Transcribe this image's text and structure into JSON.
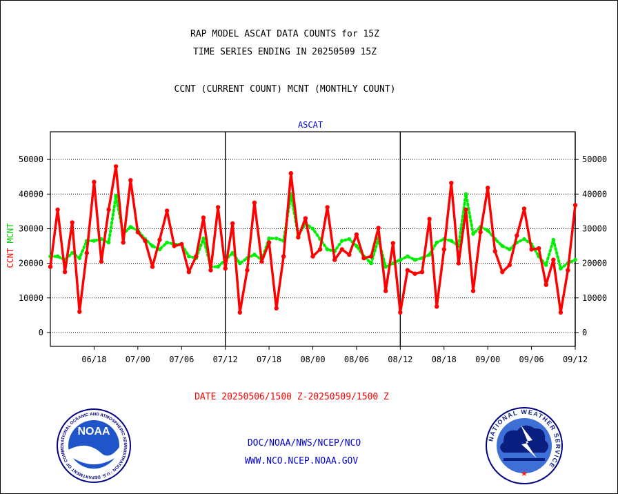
{
  "header": {
    "title_line1": "RAP MODEL ASCAT DATA COUNTS for 15Z",
    "title_line2": "TIME SERIES ENDING IN 20250509 15Z",
    "subtitle": "CCNT (CURRENT COUNT) MCNT (MONTHLY COUNT)"
  },
  "footer": {
    "date_range": "DATE 20250506/1500 Z-20250509/1500 Z",
    "agency": "DOC/NOAA/NWS/NCEP/NCO",
    "website": "WWW.NCO.NCEP.NOAA.GOV"
  },
  "logos": {
    "noaa_text": "NOAA",
    "noaa_ring": "NATIONAL OCEANIC AND ATMOSPHERIC ADMINISTRATION · U.S. DEPARTMENT OF COMMERCE",
    "nws_ring": "NATIONAL WEATHER SERVICE"
  },
  "colors": {
    "ccnt": "#ff0000",
    "mcnt": "#00ee00",
    "axis": "#000000",
    "title": "#000000",
    "panel_title": "#0000cc",
    "footer_date": "#ff0000",
    "footer_links": "#0000cc"
  },
  "chart_data": {
    "type": "line",
    "title": "ASCAT",
    "ylabel_ccnt": "CCNT",
    "ylabel_mcnt": "MCNT",
    "ylim": [
      -4000,
      58000
    ],
    "yticks": [
      0,
      10000,
      20000,
      30000,
      40000,
      50000
    ],
    "ytick_labels": [
      "0",
      "10000",
      "20000",
      "30000",
      "40000",
      "50000"
    ],
    "grid": "horizontal dotted",
    "xtick_labels": [
      "06/18",
      "07/00",
      "07/06",
      "07/12",
      "07/18",
      "08/00",
      "08/06",
      "08/12",
      "08/18",
      "09/00",
      "09/06",
      "09/12"
    ],
    "x_range_hours": [
      -3,
      69
    ],
    "xtick_hours": [
      3,
      9,
      15,
      21,
      27,
      33,
      39,
      45,
      51,
      57,
      63,
      69
    ],
    "day_boundaries_hours": [
      21,
      45,
      69
    ],
    "sample_step_hours": 1,
    "series": [
      {
        "name": "CCNT",
        "color": "#ff0000",
        "values": [
          19000,
          35500,
          17500,
          31800,
          6000,
          23000,
          43500,
          20500,
          35500,
          48000,
          26000,
          44000,
          29000,
          26500,
          19000,
          26800,
          35200,
          25000,
          25500,
          17500,
          22000,
          33200,
          18000,
          36200,
          18500,
          31500,
          5800,
          18000,
          37500,
          20500,
          26000,
          7000,
          22000,
          46000,
          27500,
          33000,
          22000,
          24000,
          36200,
          21000,
          24000,
          22500,
          28300,
          21500,
          22000,
          30200,
          12000,
          25800,
          5800,
          18000,
          17000,
          17500,
          32800,
          7500,
          24000,
          43200,
          20000,
          35500,
          12000,
          29000,
          41800,
          23500,
          17500,
          19500,
          28000,
          35800,
          24000,
          24300,
          13800,
          21000,
          5800,
          18000,
          36800
        ]
      },
      {
        "name": "MCNT",
        "color": "#00ee00",
        "values": [
          22000,
          22000,
          21000,
          23000,
          21500,
          26500,
          26500,
          27000,
          26000,
          39500,
          28500,
          30500,
          29500,
          27000,
          25000,
          24000,
          26000,
          25500,
          25500,
          22000,
          21500,
          27200,
          19000,
          19000,
          21000,
          23000,
          20000,
          21500,
          22500,
          21000,
          27200,
          27200,
          26500,
          40000,
          28000,
          31500,
          30000,
          27000,
          24000,
          23500,
          26500,
          27000,
          25000,
          22000,
          20000,
          27000,
          19000,
          20000,
          21000,
          22000,
          21000,
          21500,
          22500,
          26000,
          27000,
          26500,
          25000,
          40000,
          28500,
          30500,
          29500,
          27000,
          25000,
          24000,
          26000,
          27000,
          25500,
          22000,
          19500,
          26800,
          18500,
          20000,
          21000
        ]
      }
    ]
  }
}
